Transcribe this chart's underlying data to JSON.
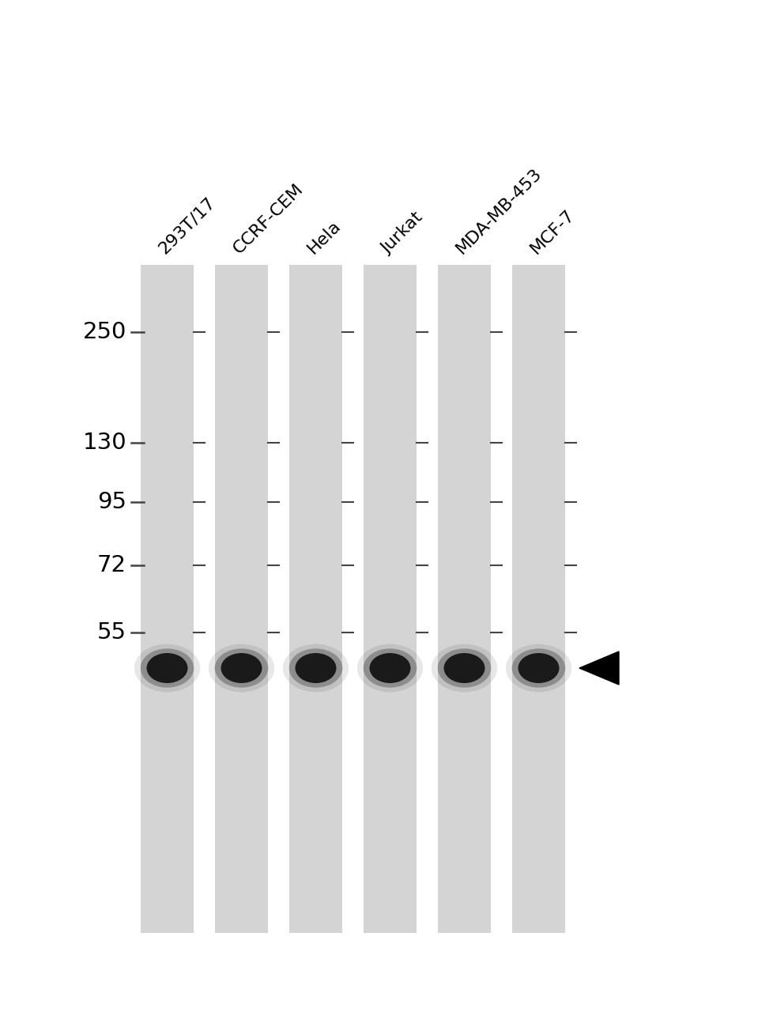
{
  "background_color": "#ffffff",
  "lane_bg_color": "#d4d4d4",
  "lane_labels": [
    "293T/17",
    "CCRF-CEM",
    "Hela",
    "Jurkat",
    "MDA-MB-453",
    "MCF-7"
  ],
  "mw_markers": [
    250,
    130,
    95,
    72,
    55
  ],
  "band_color": "#1a1a1a",
  "num_lanes": 6,
  "figsize": [
    9.79,
    12.8
  ],
  "dpi": 100,
  "label_fontsize": 16,
  "mw_fontsize": 21,
  "tick_color": "#444444"
}
